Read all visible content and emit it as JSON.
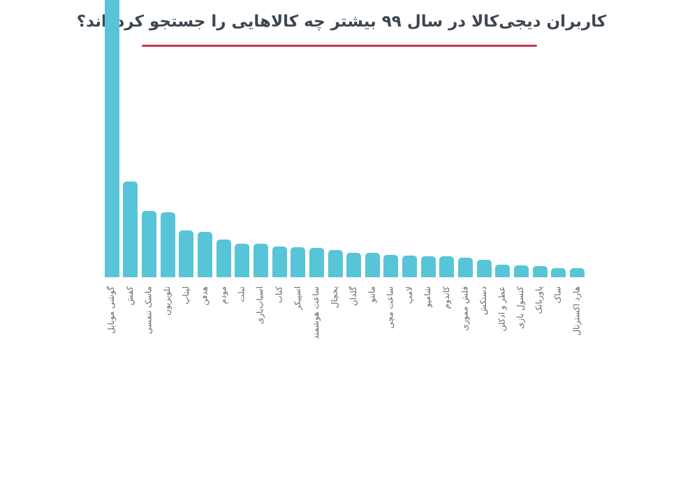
{
  "page": {
    "background": "#ffffff"
  },
  "header": {
    "title": "کاربران دیجی‌کالا در سال ۹۹ بیشتر چه کالاهایی را جستجو کرده‌اند؟",
    "title_color": "#3e4750",
    "underline_color": "#c9374e"
  },
  "chart_data": {
    "type": "bar",
    "orientation": "vertical",
    "title": "کاربران دیجی‌کالا در سال ۹۹ بیشتر چه کالاهایی را جستجو کرده‌اند؟",
    "xlabel": "",
    "ylabel": "",
    "grid": false,
    "legend": false,
    "y_axis_shown": false,
    "value_note": "No numeric axis shown in chart; values are relative search volume estimated from bar heights, normalized so the tallest bar = 100.",
    "ylim": [
      0,
      100
    ],
    "bar_color": "#58c4d8",
    "label_color": "#5f6a72",
    "categories": [
      "گوشی موبایل",
      "کفش",
      "ماسک تنفسی",
      "تلویزیون",
      "لپتاپ",
      "هدفن",
      "مودم",
      "تبلت",
      "اسباب‌بازی",
      "کتاب",
      "اسپیکر",
      "ساعت هوشمند",
      "یخچال",
      "گلدان",
      "مانتو",
      "ساعت مچی",
      "لامپ",
      "شامپو",
      "کاندوم",
      "فلش مموری",
      "دستکش",
      "عطر و ادکلن",
      "کنسول بازی",
      "پاوربانک",
      "ساک",
      "هارد اکسترنال"
    ],
    "values": [
      100,
      30.5,
      21.2,
      20.7,
      14.9,
      14.5,
      12.0,
      10.6,
      10.8,
      9.7,
      9.5,
      9.3,
      8.6,
      7.7,
      7.7,
      7.1,
      6.9,
      6.8,
      6.7,
      6.3,
      5.6,
      4.0,
      3.8,
      3.6,
      3.0,
      2.9
    ]
  }
}
